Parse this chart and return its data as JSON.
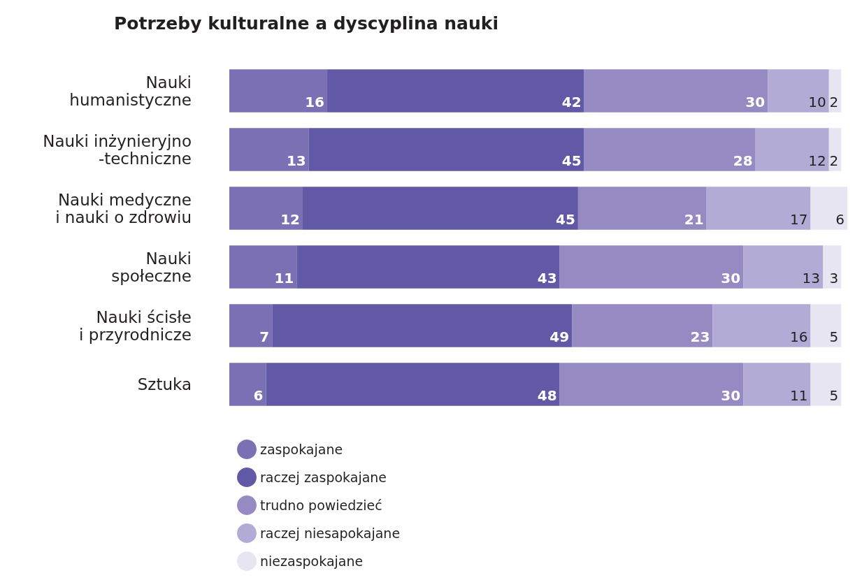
{
  "chart_data": {
    "type": "bar",
    "title": "Potrzeby kulturalne a dyscyplina nauki",
    "orientation": "horizontal",
    "stacked": true,
    "data_labels": true,
    "legend": "bottom left",
    "categories": [
      "Nauki\nhumanistyczne",
      "Nauki inżynieryjno\n-techniczne",
      "Nauki medyczne\ni nauki o zdrowiu",
      "Nauki\nspołeczne",
      "Nauki ścisłe\ni przyrodnicze",
      "Sztuka"
    ],
    "series": [
      {
        "name": "zaspokajane",
        "color": "#7b70b4",
        "values": [
          16,
          13,
          12,
          11,
          7,
          6
        ]
      },
      {
        "name": "raczej zaspokajane",
        "color": "#6259a6",
        "values": [
          42,
          45,
          45,
          43,
          49,
          48
        ]
      },
      {
        "name": "trudno powiedzieć",
        "color": "#958ac2",
        "values": [
          30,
          28,
          21,
          30,
          23,
          30
        ]
      },
      {
        "name": "raczej niesapokajane",
        "color": "#b2abd5",
        "values": [
          10,
          12,
          17,
          13,
          16,
          11
        ]
      },
      {
        "name": "niezaspokajane",
        "color": "#e7e5f2",
        "values": [
          2,
          2,
          6,
          3,
          5,
          5
        ]
      }
    ]
  }
}
